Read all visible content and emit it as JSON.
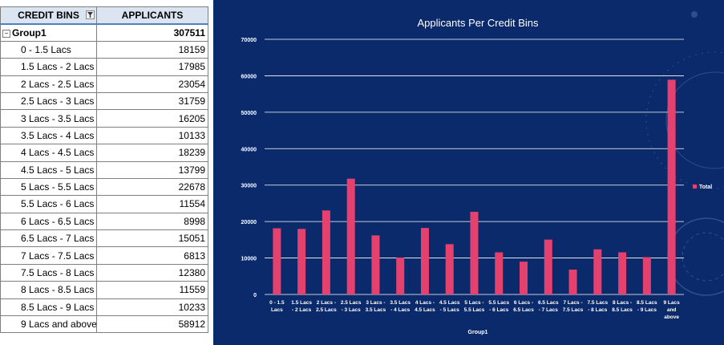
{
  "table": {
    "header_bins": "CREDIT BINS",
    "header_applicants": "APPLICANTS",
    "group_label": "Group1",
    "group_total": "307511",
    "rows": [
      {
        "bin": "0 - 1.5 Lacs",
        "applicants": "18159"
      },
      {
        "bin": "1.5 Lacs - 2 Lacs",
        "applicants": "17985"
      },
      {
        "bin": "2 Lacs - 2.5 Lacs",
        "applicants": "23054"
      },
      {
        "bin": "2.5 Lacs - 3 Lacs",
        "applicants": "31759"
      },
      {
        "bin": "3 Lacs - 3.5 Lacs",
        "applicants": "16205"
      },
      {
        "bin": "3.5 Lacs - 4 Lacs",
        "applicants": "10133"
      },
      {
        "bin": "4 Lacs - 4.5 Lacs",
        "applicants": "18239"
      },
      {
        "bin": "4.5 Lacs - 5 Lacs",
        "applicants": "13799"
      },
      {
        "bin": "5 Lacs - 5.5 Lacs",
        "applicants": "22678"
      },
      {
        "bin": "5.5 Lacs  - 6 Lacs",
        "applicants": "11554"
      },
      {
        "bin": "6 Lacs  - 6.5 Lacs",
        "applicants": "8998"
      },
      {
        "bin": "6.5 Lacs - 7 Lacs",
        "applicants": "15051"
      },
      {
        "bin": "7 Lacs - 7.5 Lacs",
        "applicants": "6813"
      },
      {
        "bin": "7.5 Lacs - 8 Lacs",
        "applicants": "12380"
      },
      {
        "bin": "8 Lacs - 8.5 Lacs",
        "applicants": "11559"
      },
      {
        "bin": "8.5 Lacs - 9 Lacs",
        "applicants": "10233"
      },
      {
        "bin": "9 Lacs  and above",
        "applicants": "58912"
      }
    ]
  },
  "chart_data": {
    "type": "bar",
    "title": "Applicants Per Credit Bins",
    "xlabel": "Group1",
    "ylabel": "",
    "ylim": [
      0,
      70000
    ],
    "yticks": [
      "0",
      "10000",
      "20000",
      "30000",
      "40000",
      "50000",
      "60000",
      "70000"
    ],
    "grid": true,
    "legend_position": "right",
    "bar_color": "#e4416f",
    "categories": [
      [
        "0 - 1.5",
        "Lacs"
      ],
      [
        "1.5 Lacs",
        "- 2 Lacs"
      ],
      [
        "2 Lacs -",
        "2.5 Lacs"
      ],
      [
        "2.5 Lacs",
        "- 3 Lacs"
      ],
      [
        "3 Lacs -",
        "3.5 Lacs"
      ],
      [
        "3.5 Lacs",
        "- 4 Lacs"
      ],
      [
        "4 Lacs -",
        "4.5 Lacs"
      ],
      [
        "4.5 Lacs",
        "- 5 Lacs"
      ],
      [
        "5 Lacs -",
        "5.5 Lacs"
      ],
      [
        "5.5 Lacs",
        "- 6 Lacs"
      ],
      [
        "6 Lacs -",
        "6.5 Lacs"
      ],
      [
        "6.5 Lacs",
        "- 7 Lacs"
      ],
      [
        "7 Lacs -",
        "7.5 Lacs"
      ],
      [
        "7.5 Lacs",
        "- 8 Lacs"
      ],
      [
        "8 Lacs -",
        "8.5 Lacs"
      ],
      [
        "8.5 Lacs",
        "- 9 Lacs"
      ],
      [
        "9 Lacs",
        "and",
        "above"
      ]
    ],
    "series": [
      {
        "name": "Total",
        "values": [
          18159,
          17985,
          23054,
          31759,
          16205,
          10133,
          18239,
          13799,
          22678,
          11554,
          8998,
          15051,
          6813,
          12380,
          11559,
          10233,
          58912
        ]
      }
    ]
  }
}
